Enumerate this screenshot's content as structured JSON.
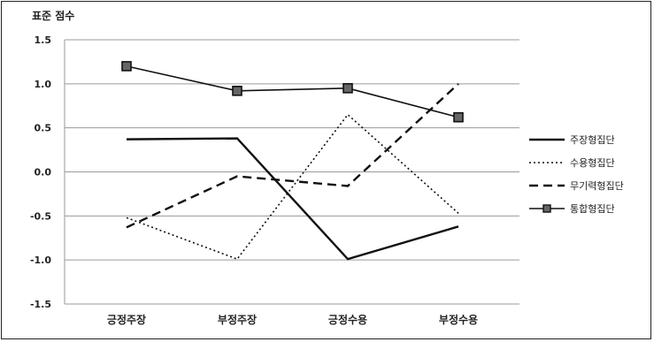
{
  "chart_data": {
    "type": "line",
    "title": "",
    "ylabel": "표준 점수",
    "xlabel": "",
    "categories": [
      "긍정주장",
      "부정주장",
      "긍정수용",
      "부정수용"
    ],
    "ylim": [
      -1.5,
      1.5
    ],
    "yticks": [
      "1.5",
      "1.0",
      "0.5",
      "0.0",
      "-0.5",
      "-1.0",
      "-1.5"
    ],
    "ytick_values": [
      1.5,
      1.0,
      0.5,
      0.0,
      -0.5,
      -1.0,
      -1.5
    ],
    "grid": true,
    "legend_position": "right",
    "series": [
      {
        "name": "주장형집단",
        "values": [
          0.37,
          0.38,
          -0.99,
          -0.62
        ],
        "style": "solid",
        "width": 2.4,
        "marker": "none",
        "color": "#111111"
      },
      {
        "name": "수용형집단",
        "values": [
          -0.52,
          -0.99,
          0.65,
          -0.47
        ],
        "style": "dotted",
        "width": 1.6,
        "marker": "none",
        "color": "#111111"
      },
      {
        "name": "무기력형집단",
        "values": [
          -0.63,
          -0.05,
          -0.16,
          1.0
        ],
        "style": "dashed",
        "width": 2.4,
        "marker": "none",
        "color": "#111111"
      },
      {
        "name": "통합형집단",
        "values": [
          1.2,
          0.92,
          0.95,
          0.62
        ],
        "style": "solid",
        "width": 1.6,
        "marker": "square",
        "color": "#111111"
      }
    ]
  }
}
